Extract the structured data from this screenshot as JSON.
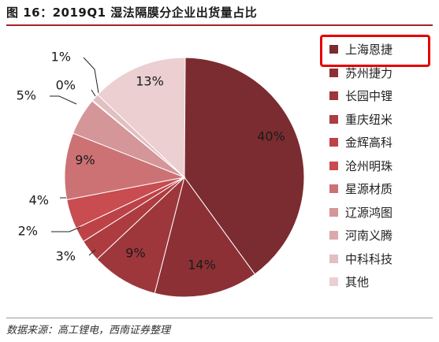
{
  "title": "图 16：2019Q1 湿法隔膜分企业出货量占比",
  "source": "数据来源：高工锂电，西南证券整理",
  "chart_data": {
    "type": "pie",
    "series": [
      {
        "name": "上海恩捷",
        "value": 40,
        "label": "40%",
        "color": "#7b2c30"
      },
      {
        "name": "苏州捷力",
        "value": 14,
        "label": "14%",
        "color": "#8c3035"
      },
      {
        "name": "长园中锂",
        "value": 9,
        "label": "9%",
        "color": "#9e373c"
      },
      {
        "name": "重庆纽米",
        "value": 3,
        "label": "3%",
        "color": "#ad3c41"
      },
      {
        "name": "金辉高科",
        "value": 2,
        "label": "2%",
        "color": "#bd4247"
      },
      {
        "name": "沧州明珠",
        "value": 4,
        "label": "4%",
        "color": "#c84c50"
      },
      {
        "name": "星源材质",
        "value": 9,
        "label": "9%",
        "color": "#cc7275"
      },
      {
        "name": "辽源鸿图",
        "value": 5,
        "label": "5%",
        "color": "#d49698"
      },
      {
        "name": "河南义腾",
        "value": 0,
        "label": "0%",
        "color": "#dba9ab"
      },
      {
        "name": "中科科技",
        "value": 1,
        "label": "1%",
        "color": "#e2bfc1"
      },
      {
        "name": "其他",
        "value": 13,
        "label": "13%",
        "color": "#ebcfd1"
      }
    ],
    "legend_position": "right",
    "highlighted": "上海恩捷"
  }
}
